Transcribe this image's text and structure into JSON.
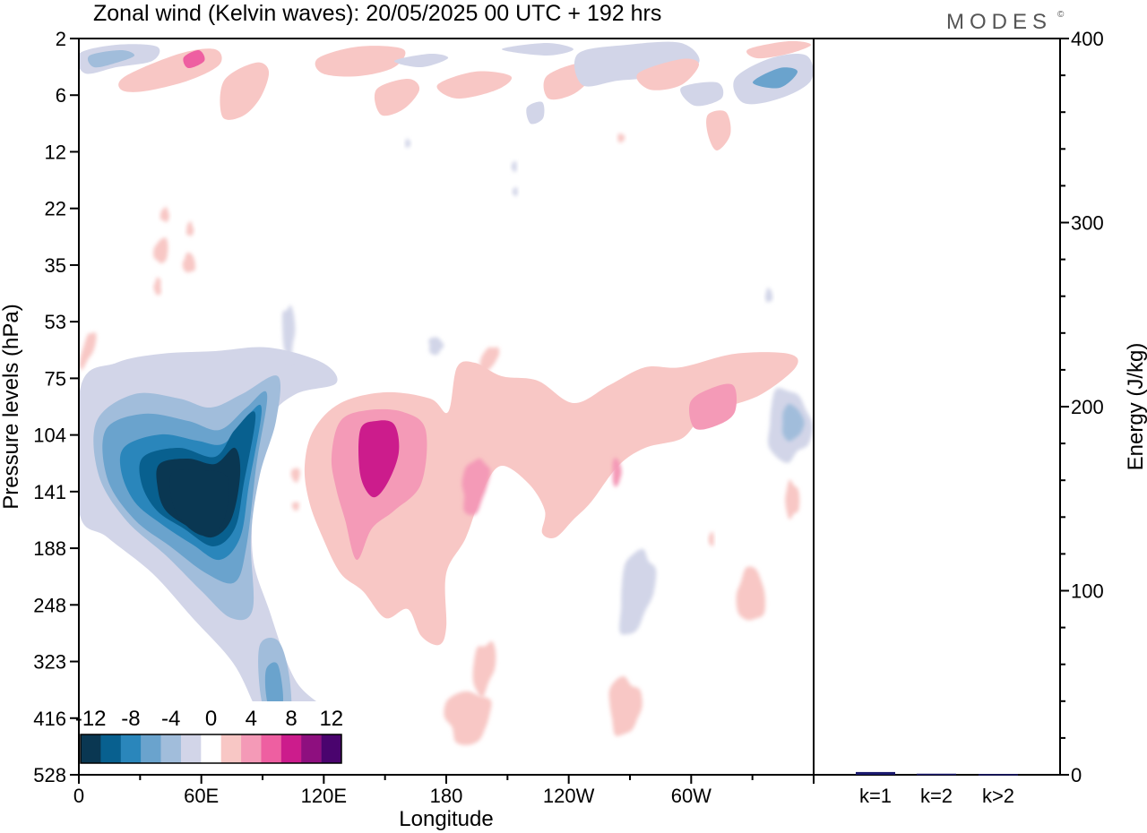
{
  "header": {
    "title": "Zonal wind (Kelvin waves):  20/05/2025  00 UTC  + 192 hrs",
    "brand": "MODES",
    "brand_mark": "©"
  },
  "colors": {
    "neg": [
      "#0a3752",
      "#08608f",
      "#2a86bb",
      "#6aa3cd",
      "#a1bddb",
      "#d2d5e8"
    ],
    "zero": "#ffffff",
    "pos": [
      "#f8c7c5",
      "#f49ab7",
      "#ee5fa1",
      "#cc1c8c",
      "#8e0f7f",
      "#4a046e"
    ],
    "bar": "#1b1a6e",
    "axis": "#000000"
  },
  "chart_data": [
    {
      "type": "heatmap",
      "variable": "Zonal wind (Kelvin waves)",
      "xlabel": "Longitude",
      "ylabel": "Pressure levels (hPa)",
      "x_ticks": [
        "0",
        "60E",
        "120E",
        "180",
        "120W",
        "60W"
      ],
      "y_ticks": [
        "2",
        "6",
        "12",
        "22",
        "35",
        "53",
        "75",
        "104",
        "141",
        "188",
        "248",
        "323",
        "416",
        "528"
      ],
      "colorbar": {
        "labels": [
          "-12",
          "-8",
          "-4",
          "0",
          "4",
          "8",
          "12"
        ],
        "levels": [
          -14,
          -12,
          -10,
          -8,
          -6,
          -4,
          -2,
          2,
          4,
          6,
          8,
          10,
          12,
          14
        ]
      },
      "features": [
        {
          "value": -14,
          "lon": 59,
          "level": 141
        },
        {
          "value": -6,
          "lon": 96,
          "level": 416
        },
        {
          "value": 9,
          "lon": 143,
          "level": 122
        },
        {
          "value": 6,
          "lon": 195,
          "level": 141
        },
        {
          "value": 6,
          "lon": 308,
          "level": 96
        },
        {
          "value": 4,
          "lon": 200,
          "level": 416
        },
        {
          "value": -2,
          "lon": 345,
          "level": 100
        }
      ]
    },
    {
      "type": "bar",
      "ylabel": "Energy (J/kg)",
      "categories": [
        "k=1",
        "k=2",
        "k>2"
      ],
      "values": [
        1.5,
        0.6,
        0.4
      ],
      "ylim": [
        0,
        400
      ],
      "y_ticks": [
        "0",
        "100",
        "200",
        "300",
        "400"
      ]
    }
  ]
}
